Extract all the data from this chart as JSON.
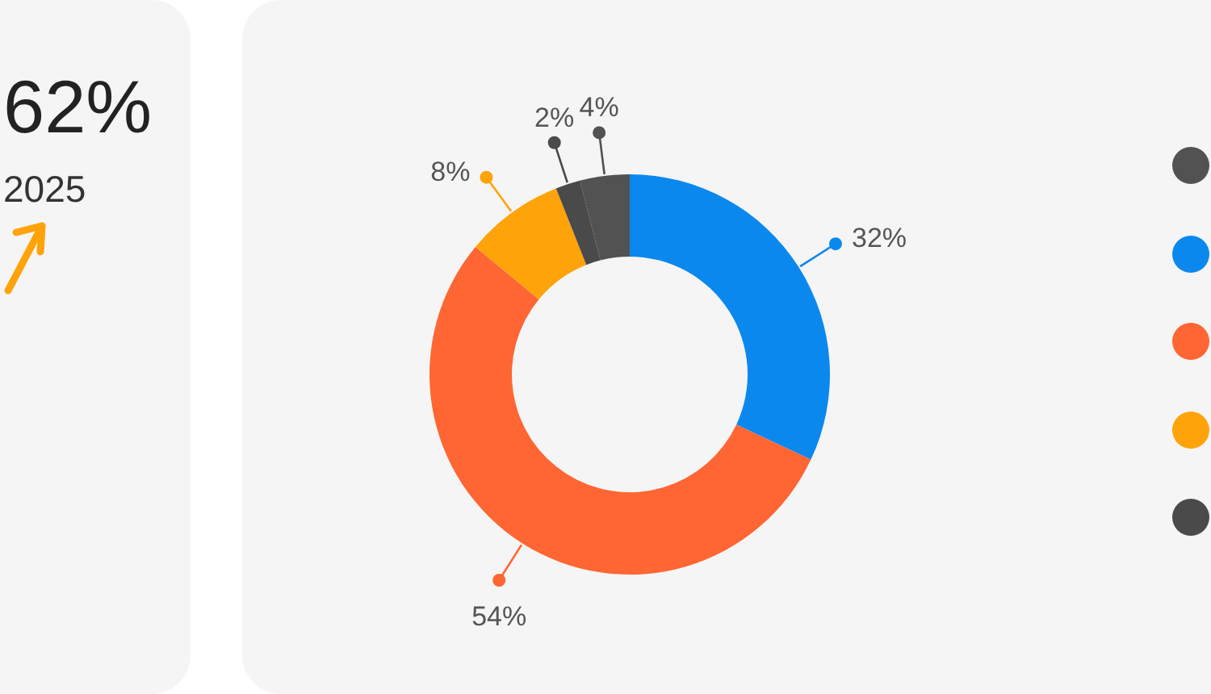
{
  "chart_data": [
    {
      "type": "other",
      "annotations": [
        "62%",
        "2025"
      ]
    },
    {
      "type": "donut",
      "categories": [
        null,
        null,
        null,
        null,
        null
      ],
      "values": [
        4,
        32,
        54,
        8,
        2
      ],
      "colors": [
        "#525252",
        "#0b88ee",
        "#ff6633",
        "#ffa30a",
        "#4a4a4a"
      ],
      "value_labels": [
        "4%",
        "32%",
        "54%",
        "8%",
        "2%"
      ]
    }
  ]
}
